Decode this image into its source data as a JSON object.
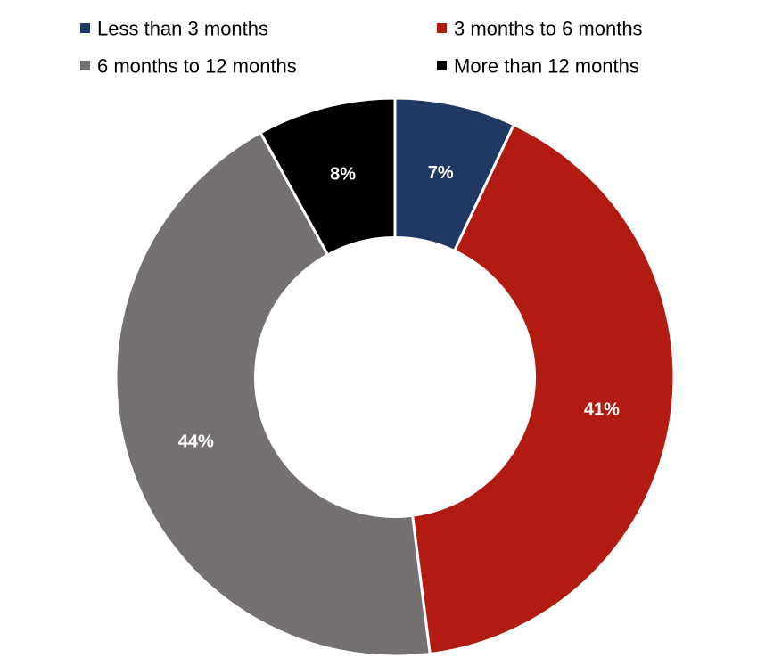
{
  "chart_data": {
    "type": "pie",
    "title": "",
    "legend_position": "top",
    "inner_radius_ratio": 0.5,
    "slices": [
      {
        "label": "Less than 3 months",
        "value": 7,
        "data_label": "7%",
        "color": "#1f3864"
      },
      {
        "label": "3 months to 6 months",
        "value": 41,
        "data_label": "41%",
        "color": "#b11b12"
      },
      {
        "label": "6 months to 12 months",
        "value": 44,
        "data_label": "44%",
        "color": "#767171"
      },
      {
        "label": "More than 12 months",
        "value": 8,
        "data_label": "8%",
        "color": "#000000"
      }
    ]
  }
}
